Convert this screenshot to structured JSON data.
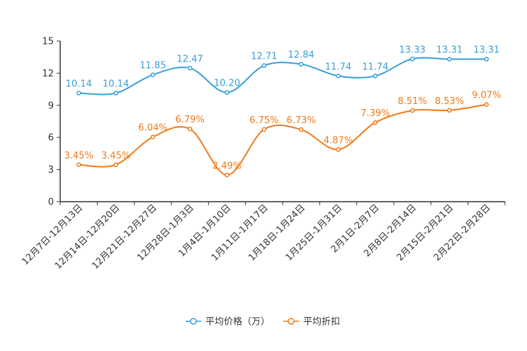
{
  "chart_data": {
    "type": "line",
    "title": "",
    "xlabel": "",
    "ylabel": "",
    "ylim": [
      0,
      15
    ],
    "yticks": [
      0,
      3,
      6,
      9,
      12,
      15
    ],
    "grid": false,
    "legend_position": "bottom-center",
    "categories": [
      "12月7日-12月13日",
      "12月14日-12月20日",
      "12月21日-12月27日",
      "12月28日-1月3日",
      "1月4日-1月10日",
      "1月11日-1月17日",
      "1月18日-1月24日",
      "1月25日-1月31日",
      "2月1日-2月7日",
      "2月8日-2月14日",
      "2月15日-2月21日",
      "2月22日-2月28日"
    ],
    "series": [
      {
        "name": "平均价格（万）",
        "color": "#3a9fd4",
        "values": [
          10.14,
          10.14,
          11.85,
          12.47,
          10.2,
          12.71,
          12.84,
          11.74,
          11.74,
          13.33,
          13.31,
          13.31
        ],
        "labels": [
          "10.14",
          "10.14",
          "11.85",
          "12.47",
          "10.20",
          "12.71",
          "12.84",
          "11.74",
          "11.74",
          "13.33",
          "13.31",
          "13.31"
        ]
      },
      {
        "name": "平均折扣",
        "color": "#f07a1a",
        "values": [
          3.45,
          3.45,
          6.04,
          6.79,
          2.49,
          6.75,
          6.73,
          4.87,
          7.39,
          8.51,
          8.53,
          9.07
        ],
        "labels": [
          "3.45%",
          "3.45%",
          "6.04%",
          "6.79%",
          "2.49%",
          "6.75%",
          "6.73%",
          "4.87%",
          "7.39%",
          "8.51%",
          "8.53%",
          "9.07%"
        ]
      }
    ]
  }
}
